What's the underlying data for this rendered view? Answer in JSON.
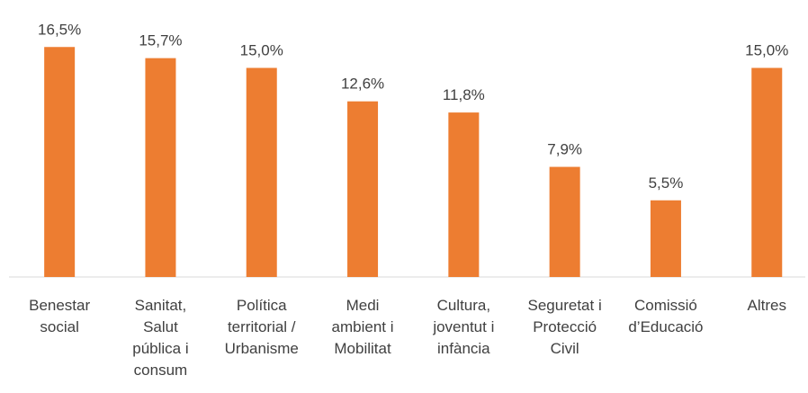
{
  "chart_data": {
    "type": "bar",
    "categories": [
      "Benestar\nsocial",
      "Sanitat,\nSalut\npública i\nconsum",
      "Política\nterritorial /\nUrbanisme",
      "Medi\nambient i\nMobilitat",
      "Cultura,\njoventut i\ninfància",
      "Seguretat i\nProtecció\nCivil",
      "Comissió\nd’Educació",
      "Altres"
    ],
    "values": [
      16.5,
      15.7,
      15.0,
      12.6,
      11.8,
      7.9,
      5.5,
      15.0
    ],
    "value_labels": [
      "16,5%",
      "15,7%",
      "15,0%",
      "12,6%",
      "11,8%",
      "7,9%",
      "5,5%",
      "15,0%"
    ],
    "color": "#ed7d31",
    "ylim": [
      0,
      18
    ]
  }
}
